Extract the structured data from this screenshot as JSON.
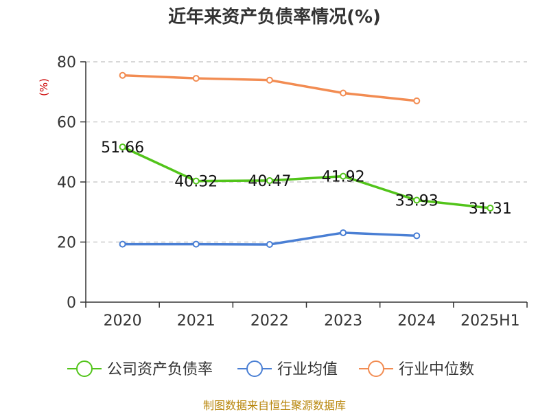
{
  "chart_data": {
    "type": "line",
    "title": "近年来资产负债率情况(%)",
    "unit_label": "(%)",
    "categories": [
      "2020",
      "2021",
      "2022",
      "2023",
      "2024",
      "2025H1"
    ],
    "ylim": [
      0,
      80
    ],
    "yticks": [
      0,
      20,
      40,
      60,
      80
    ],
    "grid": true,
    "legend_position": "bottom",
    "series": [
      {
        "name": "公司资产负债率",
        "color": "#52c41a",
        "values": [
          51.66,
          40.32,
          40.47,
          41.92,
          33.93,
          31.31
        ],
        "labels": [
          "51.66",
          "40.32",
          "40.47",
          "41.92",
          "33.93",
          "31.31"
        ]
      },
      {
        "name": "行业均值",
        "color": "#4a7fd4",
        "values": [
          19.3,
          19.3,
          19.2,
          23.1,
          22.1,
          null
        ]
      },
      {
        "name": "行业中位数",
        "color": "#f28c52",
        "values": [
          75.5,
          74.5,
          73.9,
          69.6,
          67.0,
          null
        ]
      }
    ]
  },
  "source_text": "制图数据来自恒生聚源数据库"
}
